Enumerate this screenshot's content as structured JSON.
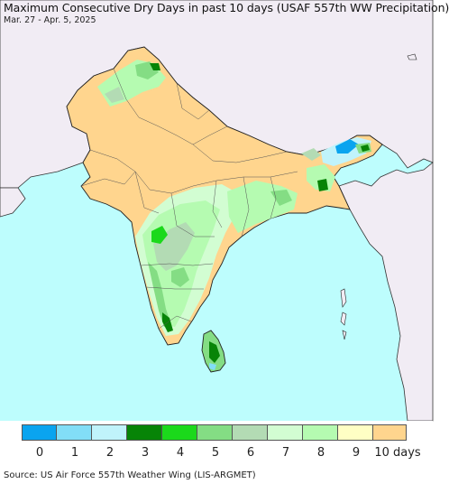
{
  "title": "Maximum Consecutive Dry Days in past 10 days (USAF 557th WW Precipitation)",
  "subtitle": "Mar. 27 - Apr. 5, 2025",
  "source": "Source: US Air Force 557th Weather Wing (LIS-ARGMET)",
  "colors": {
    "ocean": "#bdfdfd",
    "outside_land": "#f1ecf4",
    "dry_10": "#ffd58e",
    "border": "#222222"
  },
  "legend": {
    "labels": [
      "0",
      "1",
      "2",
      "3",
      "4",
      "5",
      "6",
      "7",
      "8",
      "9",
      "10 days"
    ],
    "colors": [
      "#0aa4ef",
      "#82def7",
      "#c0f3fb",
      "#078407",
      "#1bd91b",
      "#84dd84",
      "#b3dbb4",
      "#d2fdd2",
      "#b5fbb1",
      "#ffffc4",
      "#ffd58e"
    ]
  }
}
